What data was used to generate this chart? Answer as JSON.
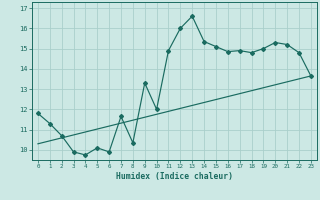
{
  "xlabel": "Humidex (Indice chaleur)",
  "xlim": [
    -0.5,
    23.5
  ],
  "ylim": [
    9.5,
    17.3
  ],
  "bg_color": "#cce8e4",
  "line_color": "#1a6b60",
  "grid_color": "#aacfcb",
  "series1_x": [
    0,
    1,
    2,
    3,
    4,
    5,
    6,
    7,
    8,
    9,
    10,
    11,
    12,
    13,
    14,
    15,
    16,
    17,
    18,
    19,
    20,
    21,
    22,
    23
  ],
  "series1_y": [
    11.8,
    11.3,
    10.7,
    9.9,
    9.75,
    10.1,
    9.9,
    11.65,
    10.35,
    13.3,
    12.0,
    14.9,
    16.0,
    16.6,
    15.35,
    15.1,
    14.85,
    14.9,
    14.8,
    15.0,
    15.3,
    15.2,
    14.8,
    13.65
  ],
  "series2_x": [
    0,
    23
  ],
  "series2_y": [
    10.3,
    13.65
  ],
  "yticks": [
    10,
    11,
    12,
    13,
    14,
    15,
    16,
    17
  ],
  "xticks": [
    0,
    1,
    2,
    3,
    4,
    5,
    6,
    7,
    8,
    9,
    10,
    11,
    12,
    13,
    14,
    15,
    16,
    17,
    18,
    19,
    20,
    21,
    22,
    23
  ]
}
